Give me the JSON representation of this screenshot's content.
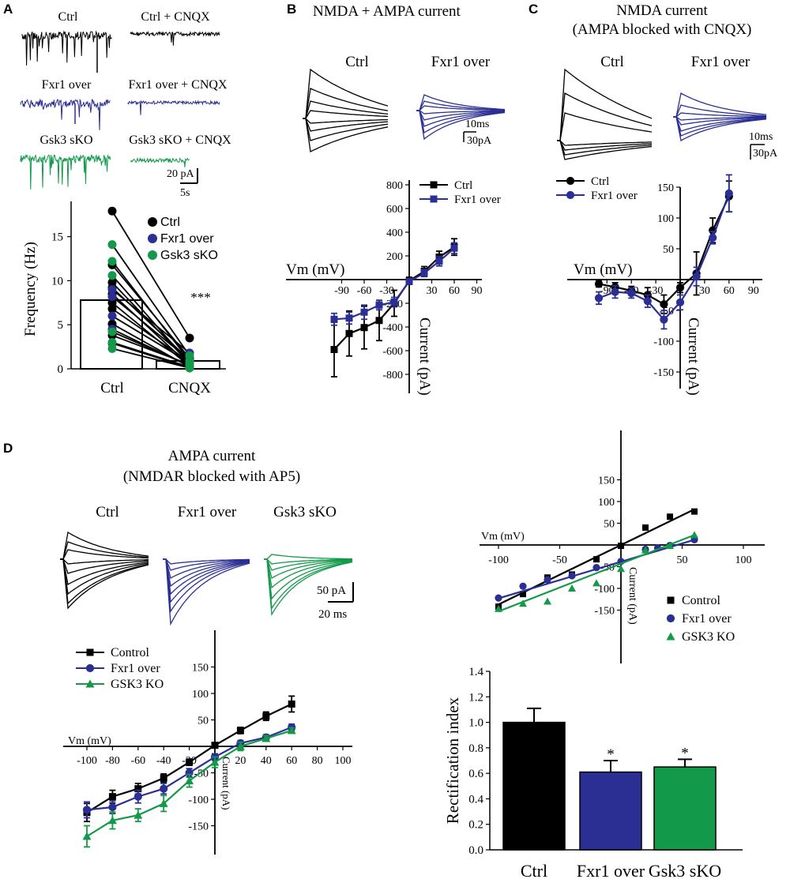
{
  "colors": {
    "ctrl": "#000000",
    "fxr": "#2b2f93",
    "gsk": "#13994a"
  },
  "panels": {
    "A": {
      "letter": "A",
      "trace_labels": [
        "Ctrl",
        "Ctrl + CNQX",
        "Fxr1 over",
        "Fxr1 over + CNQX",
        "Gsk3 sKO",
        "Gsk3 sKO + CNQX"
      ],
      "scale_y": "20 pA",
      "scale_x": "5s"
    },
    "B": {
      "letter": "B",
      "title": "NMDA + AMPA current",
      "trace_ctrl": "Ctrl",
      "trace_fxr": "Fxr1 over",
      "scale_t": "10ms",
      "scale_i": "30pA"
    },
    "C": {
      "letter": "C",
      "title_1": "NMDA current",
      "title_2": "(AMPA blocked with CNQX)",
      "trace_ctrl": "Ctrl",
      "trace_fxr": "Fxr1 over",
      "scale_t": "10ms",
      "scale_i": "30pA"
    },
    "D": {
      "letter": "D",
      "title_1": "AMPA current",
      "title_2": "(NMDAR blocked with AP5)",
      "trace_ctrl": "Ctrl",
      "trace_fxr": "Fxr1 over",
      "trace_gsk": "Gsk3 sKO",
      "scale_i": "50 pA",
      "scale_t": "20 ms"
    }
  },
  "chart_data": [
    {
      "id": "A-frequency",
      "type": "bar",
      "categories": [
        "Ctrl",
        "CNQX"
      ],
      "values": [
        7.8,
        0.9
      ],
      "ylabel": "Frequency (Hz)",
      "ylim": [
        0,
        19
      ],
      "yticks": [
        0,
        5,
        10,
        15
      ],
      "legend": [
        "Ctrl",
        "Fxr1 over",
        "Gsk3 sKO"
      ],
      "annotation": "***",
      "pairs": [
        {
          "group": "Ctrl",
          "before": 17.9,
          "after": 3.5
        },
        {
          "group": "Ctrl",
          "before": 11.8,
          "after": 1.2
        },
        {
          "group": "Ctrl",
          "before": 9.8,
          "after": 0.6
        },
        {
          "group": "Ctrl",
          "before": 9.2,
          "after": 1.0
        },
        {
          "group": "Ctrl",
          "before": 8.5,
          "after": 0.4
        },
        {
          "group": "Ctrl",
          "before": 7.5,
          "after": 0.3
        },
        {
          "group": "Ctrl",
          "before": 6.8,
          "after": 0.8
        },
        {
          "group": "Ctrl",
          "before": 5.1,
          "after": 0.2
        },
        {
          "group": "Ctrl",
          "before": 3.8,
          "after": 0.5
        },
        {
          "group": "Ctrl",
          "before": 2.9,
          "after": 0.1
        },
        {
          "group": "Fxr1 over",
          "before": 9.0,
          "after": 1.8
        },
        {
          "group": "Fxr1 over",
          "before": 8.2,
          "after": 1.0
        },
        {
          "group": "Fxr1 over",
          "before": 6.0,
          "after": 0.7
        },
        {
          "group": "Fxr1 over",
          "before": 4.5,
          "after": 0.3
        },
        {
          "group": "Gsk3 sKO",
          "before": 14.1,
          "after": 1.5
        },
        {
          "group": "Gsk3 sKO",
          "before": 12.2,
          "after": 0.9
        },
        {
          "group": "Gsk3 sKO",
          "before": 10.6,
          "after": 0.6
        },
        {
          "group": "Gsk3 sKO",
          "before": 4.2,
          "after": 0.4
        },
        {
          "group": "Gsk3 sKO",
          "before": 3.0,
          "after": 0.2
        },
        {
          "group": "Gsk3 sKO",
          "before": 2.3,
          "after": 0.1
        }
      ]
    },
    {
      "id": "B-iv",
      "type": "line",
      "xlabel": "Vm (mV)",
      "ylabel": "Current (pA)",
      "xticks": [
        -90,
        -60,
        -30,
        30,
        60,
        90
      ],
      "yticks": [
        -800,
        -600,
        -400,
        -200,
        200,
        400,
        600,
        800
      ],
      "x": [
        -100,
        -80,
        -60,
        -40,
        -20,
        0,
        20,
        40,
        60
      ],
      "series": [
        {
          "name": "Ctrl",
          "group": "ctrl",
          "marker": "square",
          "values": [
            -590,
            -455,
            -405,
            -345,
            -200,
            -10,
            70,
            190,
            275
          ],
          "err": [
            230,
            190,
            180,
            170,
            110,
            30,
            40,
            50,
            70
          ]
        },
        {
          "name": "Fxr1 over",
          "group": "fxr",
          "marker": "square",
          "values": [
            -335,
            -325,
            -275,
            -215,
            -190,
            -15,
            55,
            155,
            265
          ],
          "err": [
            50,
            50,
            60,
            40,
            40,
            20,
            30,
            40,
            45
          ]
        }
      ]
    },
    {
      "id": "C-iv",
      "type": "line",
      "xlabel": "Vm (mV)",
      "ylabel": "Current (pA)",
      "xticks": [
        -90,
        -60,
        -30,
        30,
        60,
        90
      ],
      "yticks": [
        -150,
        -100,
        -50,
        50,
        100,
        150
      ],
      "x": [
        -100,
        -80,
        -60,
        -40,
        -20,
        0,
        20,
        40,
        60
      ],
      "series": [
        {
          "name": "Ctrl",
          "group": "ctrl",
          "marker": "circle",
          "values": [
            -7,
            -12,
            -18,
            -25,
            -40,
            -13,
            10,
            80,
            135
          ],
          "err": [
            5,
            7,
            7,
            12,
            15,
            8,
            35,
            20,
            25
          ]
        },
        {
          "name": "Fxr1 over",
          "group": "fxr",
          "marker": "circle",
          "values": [
            -30,
            -20,
            -22,
            -35,
            -65,
            -37,
            5,
            68,
            140
          ],
          "err": [
            10,
            10,
            8,
            10,
            15,
            12,
            15,
            10,
            30
          ]
        }
      ]
    },
    {
      "id": "D-iv",
      "type": "line",
      "xlabel": "Vm (mV)",
      "ylabel": "Current (pA)",
      "xticks": [
        -100,
        -80,
        -60,
        -40,
        -20,
        0,
        20,
        40,
        60,
        80,
        100
      ],
      "yticks": [
        -150,
        -100,
        -50,
        50,
        100,
        150
      ],
      "x": [
        -100,
        -80,
        -60,
        -40,
        -20,
        0,
        20,
        40,
        60
      ],
      "series": [
        {
          "name": "Control",
          "group": "ctrl",
          "marker": "square",
          "values": [
            -125,
            -95,
            -80,
            -60,
            -30,
            2,
            30,
            57,
            80
          ],
          "err": [
            17,
            12,
            10,
            8,
            6,
            5,
            6,
            8,
            15
          ]
        },
        {
          "name": "Fxr1 over",
          "group": "fxr",
          "marker": "circle",
          "values": [
            -120,
            -115,
            -95,
            -80,
            -50,
            -20,
            6,
            17,
            36
          ],
          "err": [
            15,
            12,
            12,
            10,
            8,
            6,
            5,
            5,
            6
          ]
        },
        {
          "name": "GSK3 KO",
          "group": "gsk",
          "marker": "triangle",
          "values": [
            -170,
            -140,
            -130,
            -108,
            -65,
            -30,
            0,
            15,
            30
          ],
          "err": [
            20,
            16,
            12,
            15,
            12,
            10,
            8,
            5,
            5
          ]
        }
      ]
    },
    {
      "id": "D-fit",
      "type": "scatter",
      "xlabel": "Vm (mV)",
      "ylabel": "Current (pA)",
      "xticks": [
        -100,
        -50,
        50,
        100
      ],
      "yticks": [
        -150,
        -100,
        -50,
        50,
        100,
        150
      ],
      "series": [
        {
          "name": "Control",
          "group": "ctrl",
          "marker": "square",
          "x": [
            -100,
            -80,
            -60,
            -40,
            -20,
            0,
            20,
            40,
            60
          ],
          "y": [
            -142,
            -113,
            -75,
            -68,
            -33,
            -2,
            40,
            65,
            77
          ],
          "fit": [
            [
              -100,
              -137
            ],
            [
              60,
              82
            ]
          ]
        },
        {
          "name": "Fxr1 over",
          "group": "fxr",
          "marker": "circle",
          "x": [
            -100,
            -80,
            -60,
            -40,
            -20,
            0,
            20,
            30,
            40,
            60
          ],
          "y": [
            -122,
            -95,
            -80,
            -71,
            -52,
            -38,
            -10,
            -7,
            -1,
            12
          ],
          "fit": [
            [
              -100,
              -123
            ],
            [
              60,
              12
            ]
          ]
        },
        {
          "name": "GSK3 KO",
          "group": "gsk",
          "marker": "triangle",
          "x": [
            -100,
            -80,
            -60,
            -40,
            -20,
            0,
            20,
            40,
            60
          ],
          "y": [
            -147,
            -135,
            -130,
            -100,
            -88,
            -55,
            -12,
            -2,
            23
          ],
          "fit": [
            [
              -100,
              -153
            ],
            [
              60,
              23
            ]
          ]
        }
      ]
    },
    {
      "id": "D-rect",
      "type": "bar",
      "categories": [
        "Ctrl",
        "Fxr1 over",
        "Gsk3 sKO"
      ],
      "values": [
        1.0,
        0.61,
        0.65
      ],
      "errors": [
        0.11,
        0.09,
        0.06
      ],
      "groups": [
        "ctrl",
        "fxr",
        "gsk"
      ],
      "ylabel": "Rectification index",
      "ylim": [
        0,
        1.4
      ],
      "yticks": [
        "0.0",
        "0.2",
        "0.4",
        "0.6",
        "0.8",
        "1.0",
        "1.2",
        "1.4"
      ],
      "annotations": [
        "",
        "*",
        "*"
      ]
    }
  ]
}
